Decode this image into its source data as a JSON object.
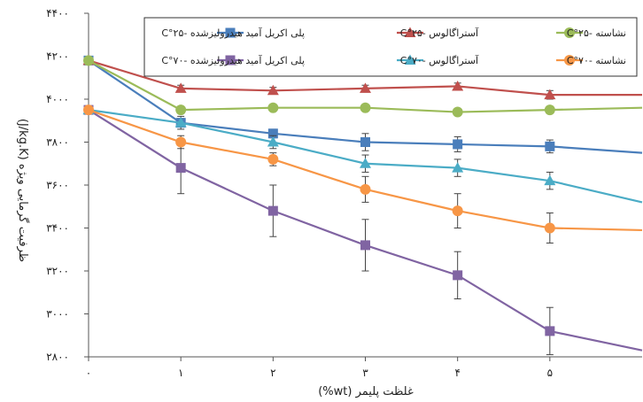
{
  "chart_data": {
    "type": "line",
    "xlabel": "غلظت پلیمر (wt%)",
    "ylabel": "ظرفیت گرمایی ویژه (J/kg.K)",
    "x": [
      0,
      1,
      2,
      3,
      4,
      5,
      6
    ],
    "x_tick_labels": [
      "۰",
      "۱",
      "۲",
      "۳",
      "۴",
      "۵"
    ],
    "y_ticks": [
      2800,
      3000,
      3200,
      3400,
      3600,
      3800,
      4000,
      4200,
      4400
    ],
    "y_tick_labels": [
      "۲۸۰۰",
      "۳۰۰۰",
      "۳۲۰۰",
      "۳۴۰۰",
      "۳۶۰۰",
      "۳۸۰۰",
      "۴۰۰۰",
      "۴۲۰۰",
      "۴۴۰۰"
    ],
    "xlim": [
      0,
      6
    ],
    "ylim": [
      2800,
      4400
    ],
    "grid": false,
    "legend_position": "top-right",
    "series": [
      {
        "name": "پلی اکریل آمید هیدرولیزشده -۲۵°C",
        "color": "#4a7ebb",
        "marker": "square",
        "values": [
          4180,
          3890,
          3840,
          3800,
          3790,
          3780,
          3750
        ],
        "errors": [
          0,
          20,
          20,
          40,
          35,
          30,
          0
        ]
      },
      {
        "name": "آستراگالوس -۲۵°C",
        "color": "#c0504d",
        "marker": "triangle",
        "values": [
          4180,
          4050,
          4040,
          4050,
          4060,
          4020,
          4020
        ],
        "errors": [
          0,
          15,
          15,
          15,
          15,
          20,
          0
        ]
      },
      {
        "name": "نشاسته -۲۵°C",
        "color": "#9bbb59",
        "marker": "circle",
        "values": [
          4180,
          3950,
          3960,
          3960,
          3940,
          3950,
          3960
        ],
        "errors": [
          0,
          15,
          15,
          15,
          15,
          15,
          0
        ]
      },
      {
        "name": "پلی اکریل آمید هیدرولیزشده -۷۰°C",
        "color": "#8064a2",
        "marker": "square",
        "values": [
          3950,
          3680,
          3480,
          3320,
          3180,
          2920,
          2830
        ],
        "errors": [
          0,
          120,
          120,
          120,
          110,
          110,
          0
        ]
      },
      {
        "name": "آستراگالوس -۷۰°C",
        "color": "#4bacc6",
        "marker": "triangle",
        "values": [
          3950,
          3890,
          3800,
          3700,
          3680,
          3620,
          3520
        ],
        "errors": [
          0,
          30,
          30,
          40,
          40,
          40,
          0
        ]
      },
      {
        "name": "نشاسته -۷۰°C",
        "color": "#f79646",
        "marker": "circle",
        "values": [
          3950,
          3800,
          3720,
          3580,
          3480,
          3400,
          3390
        ],
        "errors": [
          0,
          30,
          30,
          60,
          80,
          70,
          0
        ]
      }
    ]
  }
}
